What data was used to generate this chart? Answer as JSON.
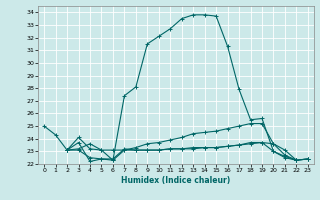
{
  "xlabel": "Humidex (Indice chaleur)",
  "background_color": "#cce9e9",
  "grid_color": "#ffffff",
  "line_color": "#006666",
  "xlim": [
    -0.5,
    23.5
  ],
  "ylim": [
    22,
    34.5
  ],
  "yticks": [
    22,
    23,
    24,
    25,
    26,
    27,
    28,
    29,
    30,
    31,
    32,
    33,
    34
  ],
  "xticks": [
    0,
    1,
    2,
    3,
    4,
    5,
    6,
    7,
    8,
    9,
    10,
    11,
    12,
    13,
    14,
    15,
    16,
    17,
    18,
    19,
    20,
    21,
    22,
    23
  ],
  "series": [
    {
      "x": [
        0,
        1,
        2,
        3,
        4,
        5,
        6,
        7,
        8,
        9,
        10,
        11,
        12,
        13,
        14,
        15,
        16,
        17,
        18,
        19,
        20,
        21,
        22
      ],
      "y": [
        25.0,
        24.3,
        23.1,
        23.7,
        22.2,
        22.4,
        22.3,
        27.4,
        28.1,
        31.5,
        32.1,
        32.7,
        33.5,
        33.8,
        33.8,
        33.7,
        31.3,
        27.9,
        25.5,
        25.6,
        23.0,
        22.5,
        22.3
      ]
    },
    {
      "x": [
        2,
        3,
        4,
        5,
        6,
        7,
        8,
        9,
        10,
        11,
        12,
        13,
        14,
        15,
        16,
        17,
        18,
        19,
        20,
        21,
        22,
        23
      ],
      "y": [
        23.1,
        23.2,
        23.6,
        23.1,
        23.1,
        23.1,
        23.3,
        23.6,
        23.7,
        23.9,
        24.1,
        24.4,
        24.5,
        24.6,
        24.8,
        25.0,
        25.2,
        25.2,
        23.6,
        23.1,
        22.3,
        22.4
      ]
    },
    {
      "x": [
        2,
        3,
        4,
        5,
        6,
        7,
        8,
        9,
        10,
        11,
        12,
        13,
        14,
        15,
        16,
        17,
        18,
        19,
        20,
        21,
        22,
        23
      ],
      "y": [
        23.1,
        23.1,
        22.5,
        22.4,
        22.4,
        23.2,
        23.1,
        23.1,
        23.1,
        23.2,
        23.2,
        23.3,
        23.3,
        23.3,
        23.4,
        23.5,
        23.6,
        23.7,
        23.0,
        22.6,
        22.3,
        22.4
      ]
    },
    {
      "x": [
        2,
        3,
        4,
        5,
        6,
        7,
        8,
        9,
        10,
        11,
        12,
        13,
        14,
        15,
        16,
        17,
        18,
        19,
        20,
        21,
        22,
        23
      ],
      "y": [
        23.1,
        24.1,
        23.2,
        23.1,
        22.3,
        23.1,
        23.1,
        23.1,
        23.1,
        23.2,
        23.2,
        23.2,
        23.3,
        23.3,
        23.4,
        23.5,
        23.7,
        23.7,
        23.6,
        22.7,
        22.3,
        22.4
      ]
    }
  ]
}
